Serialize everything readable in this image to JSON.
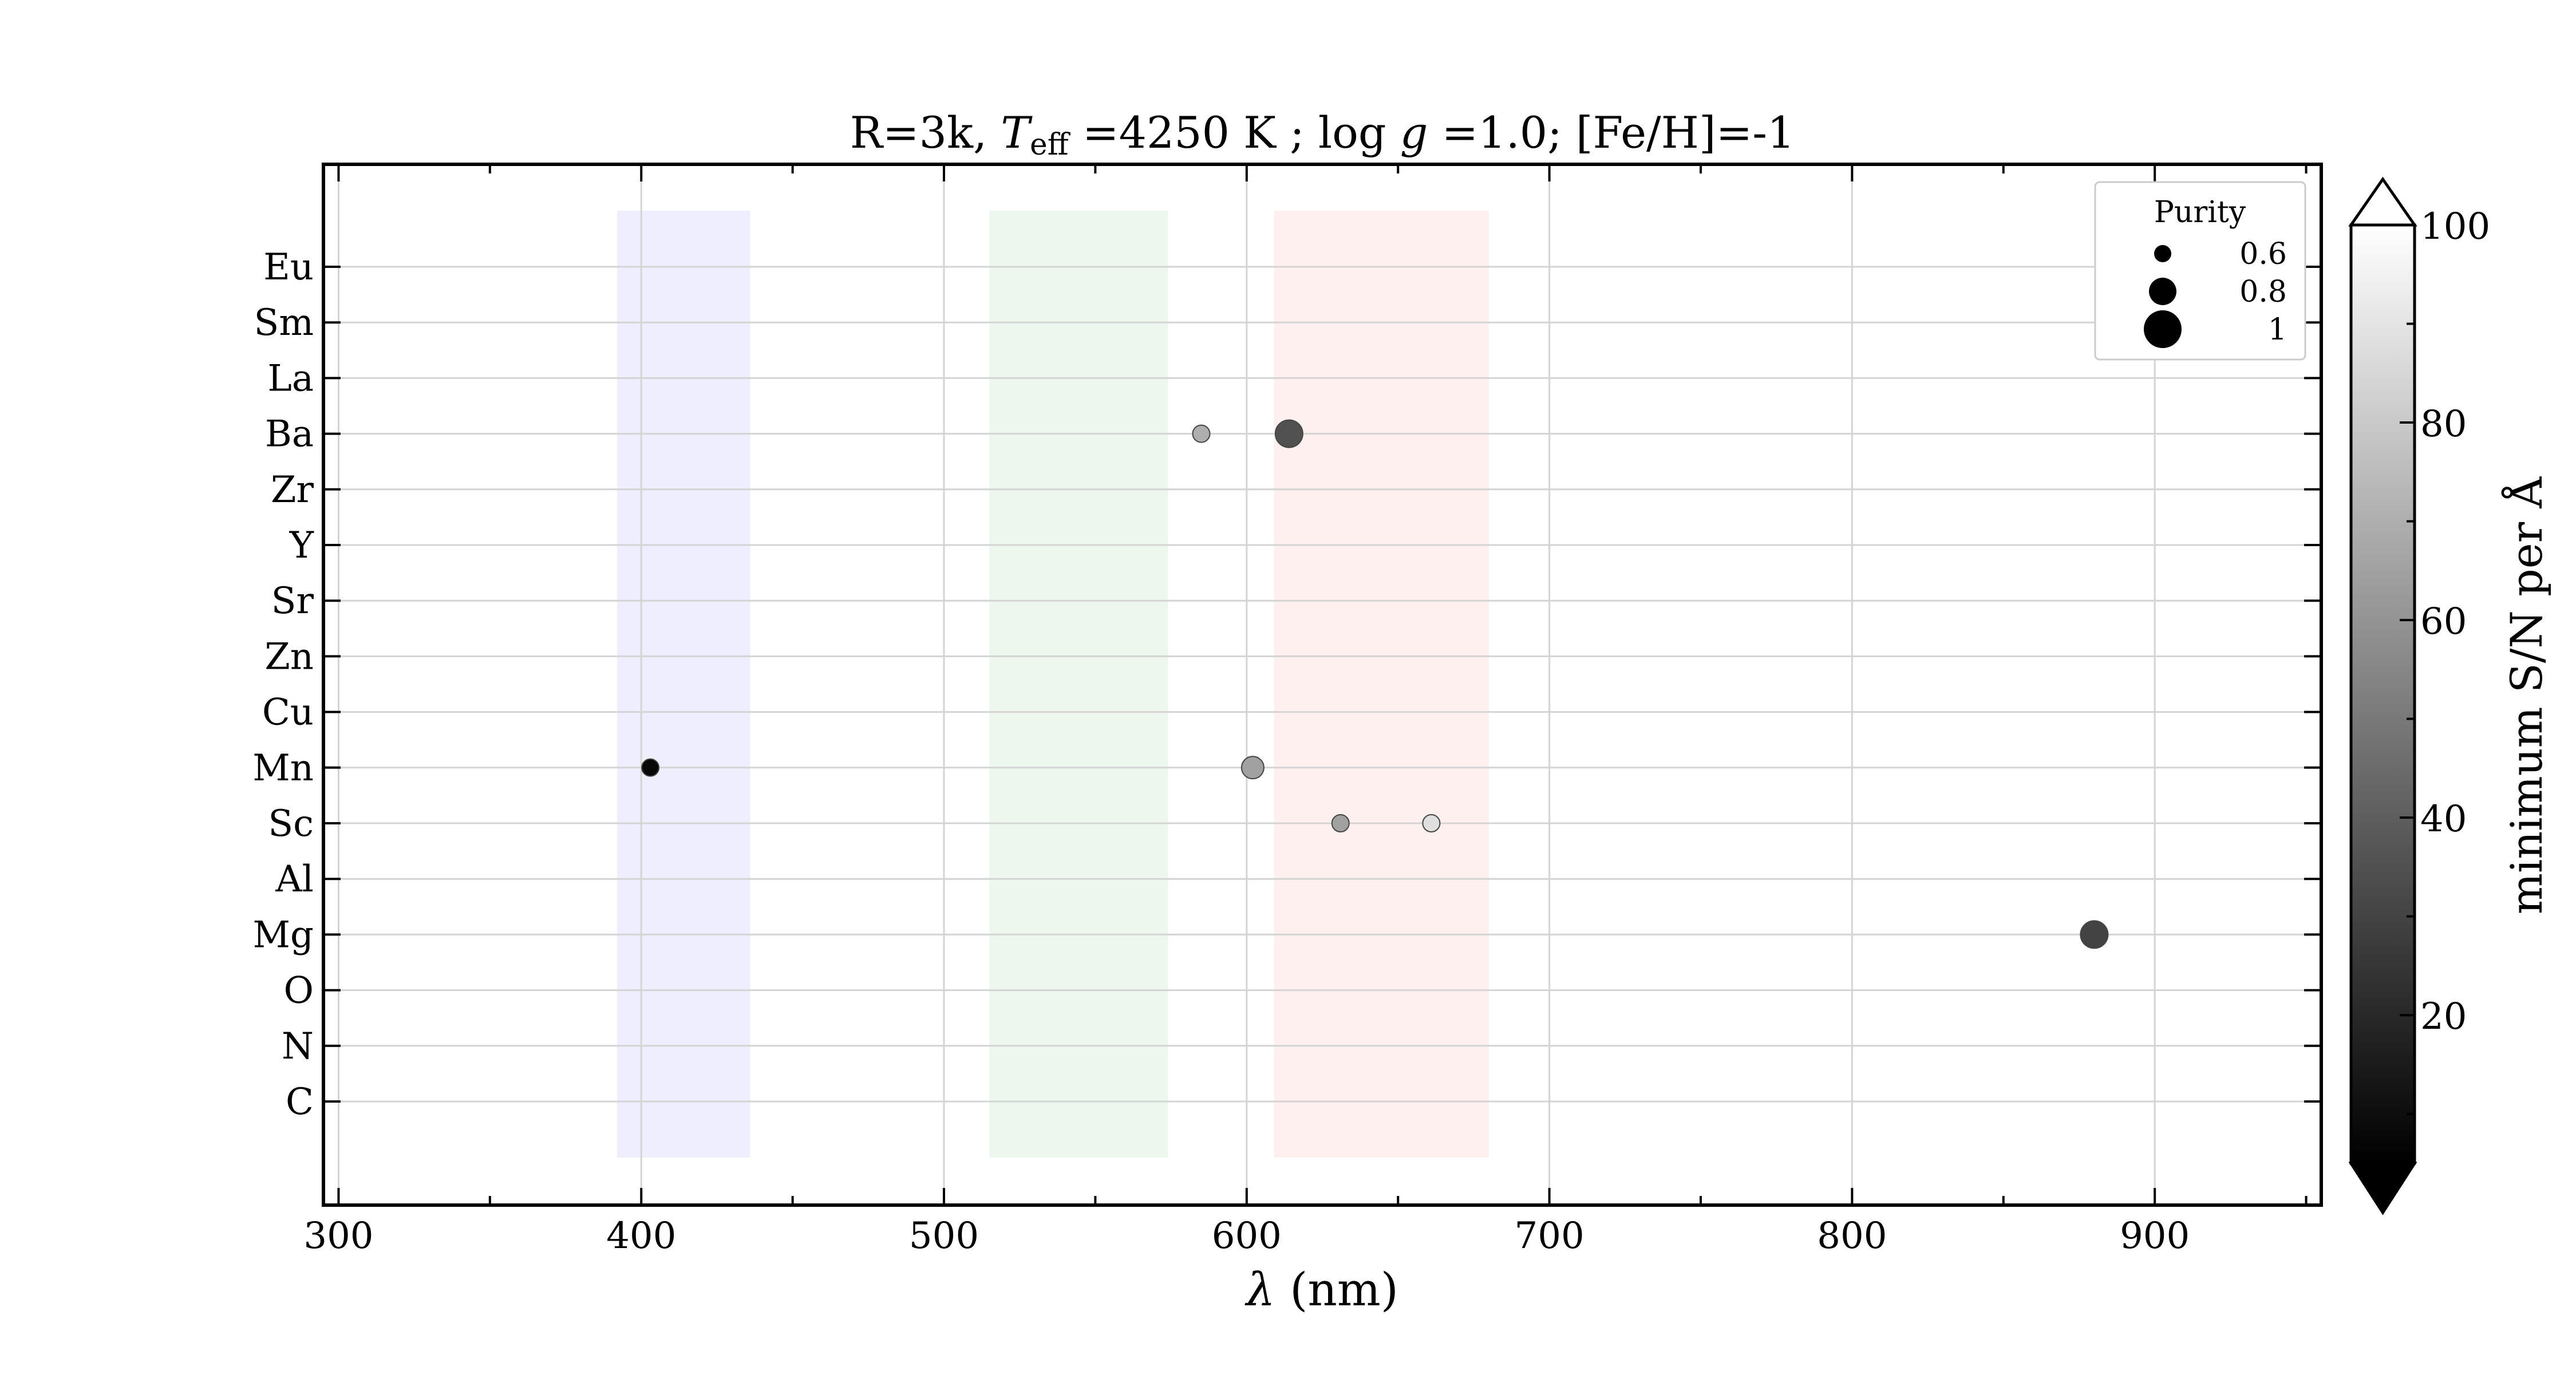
{
  "chart_data": {
    "type": "scatter",
    "title_parts": {
      "prefix": "R=3k, ",
      "teff_symbol": "T",
      "teff_sub": "eff",
      "rest": " =4250 K ; log ",
      "g_symbol": "g",
      "rest2": " =1.0; [Fe/H]=-1"
    },
    "xlabel_symbol": "λ",
    "xlabel_unit": " (nm)",
    "xlim": [
      295,
      955
    ],
    "x_ticks": [
      "300",
      "400",
      "500",
      "600",
      "700",
      "800",
      "900"
    ],
    "categories": [
      "C",
      "N",
      "O",
      "Mg",
      "Al",
      "Sc",
      "Mn",
      "Cu",
      "Zn",
      "Sr",
      "Y",
      "Zr",
      "Ba",
      "La",
      "Sm",
      "Eu"
    ],
    "bands": [
      {
        "x0": 392,
        "x1": 436,
        "color": "#eeeeff"
      },
      {
        "x0": 515,
        "x1": 574,
        "color": "#eef7ee"
      },
      {
        "x0": 609,
        "x1": 680,
        "color": "#fff0f0"
      }
    ],
    "points": [
      {
        "element": "Ba",
        "x": 585,
        "purity": 0.6,
        "sn": 70
      },
      {
        "element": "Ba",
        "x": 614,
        "purity": 0.8,
        "sn": 35
      },
      {
        "element": "Mn",
        "x": 403,
        "purity": 0.6,
        "sn": 8
      },
      {
        "element": "Mn",
        "x": 602,
        "purity": 0.7,
        "sn": 65
      },
      {
        "element": "Sc",
        "x": 631,
        "purity": 0.6,
        "sn": 65
      },
      {
        "element": "Sc",
        "x": 661,
        "purity": 0.6,
        "sn": 88
      },
      {
        "element": "Mg",
        "x": 880,
        "purity": 0.8,
        "sn": 30
      }
    ],
    "legend": {
      "title": "Purity",
      "position": "top-right",
      "entries": [
        {
          "label": "0.6",
          "value": 0.6
        },
        {
          "label": "0.8",
          "value": 0.8
        },
        {
          "label": "1",
          "value": 1.0
        }
      ]
    },
    "colorbar": {
      "label": "minimum S/N per Å",
      "range": [
        5,
        100
      ],
      "ticks": [
        "20",
        "40",
        "60",
        "80",
        "100"
      ],
      "colormap": "gray"
    },
    "grid": true
  }
}
